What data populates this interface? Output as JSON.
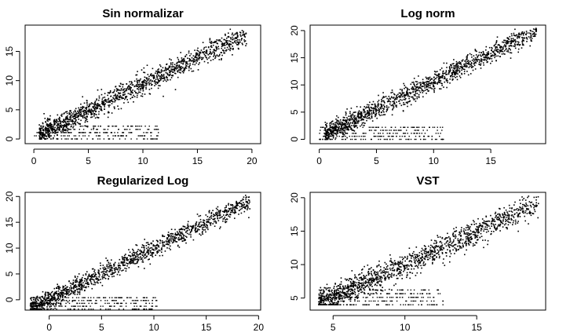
{
  "chart_data": [
    {
      "type": "scatter",
      "title": "Sin normalizar",
      "xlabel": "",
      "ylabel": "",
      "xlim": [
        -0.8,
        20.8
      ],
      "ylim": [
        -0.8,
        19.5
      ],
      "xticks": [
        0,
        5,
        10,
        15,
        20
      ],
      "yticks": [
        0,
        5,
        10,
        15
      ],
      "grid": false,
      "trend": {
        "slope": 0.9,
        "intercept": 0.4
      },
      "floor_min": 0,
      "point_range": [
        0.5,
        19.5
      ]
    },
    {
      "type": "scatter",
      "title": "Log norm",
      "xlabel": "",
      "ylabel": "",
      "xlim": [
        -0.8,
        19.8
      ],
      "ylim": [
        -0.8,
        21.0
      ],
      "xticks": [
        0,
        5,
        10,
        15
      ],
      "yticks": [
        0,
        5,
        10,
        15,
        20
      ],
      "grid": false,
      "trend": {
        "slope": 1.02,
        "intercept": 0.5
      },
      "floor_min": 0,
      "point_range": [
        0.5,
        19.0
      ]
    },
    {
      "type": "scatter",
      "title": "Regularized Log",
      "xlabel": "",
      "ylabel": "",
      "xlim": [
        -2.3,
        20.2
      ],
      "ylim": [
        -2.0,
        20.8
      ],
      "xticks": [
        0,
        5,
        10,
        15,
        20
      ],
      "yticks": [
        0,
        5,
        10,
        15,
        20
      ],
      "grid": false,
      "trend": {
        "slope": 1.0,
        "intercept": 0.0
      },
      "floor_min": -1.8,
      "point_range": [
        -1.8,
        19.2
      ]
    },
    {
      "type": "scatter",
      "title": "VST",
      "xlabel": "",
      "ylabel": "",
      "xlim": [
        3.4,
        19.8
      ],
      "ylim": [
        3.2,
        20.8
      ],
      "xticks": [
        5,
        10,
        15
      ],
      "yticks": [
        5,
        10,
        15,
        20
      ],
      "grid": false,
      "trend": {
        "slope": 0.97,
        "intercept": 0.3
      },
      "floor_min": 4.0,
      "point_range": [
        4.0,
        19.3
      ]
    }
  ]
}
